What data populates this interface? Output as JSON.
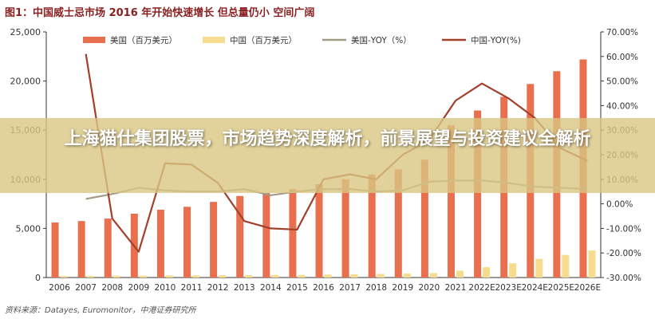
{
  "figure_title": "图1：中国威士忌市场 2016 年开始快速增长 但总量仍小 空间广阔",
  "source_note": "资料来源：Datayes, Euromonitor，中港证券研究所",
  "banner_text": "上海猫仕集团股票，市场趋势深度解析，前景展望与投资建议全解析",
  "colors": {
    "us_value": "#e8704f",
    "cn_value": "#f5dc8e",
    "us_yoy": "#a49a86",
    "cn_yoy": "#a2402b",
    "axis": "#333333",
    "title": "#8a1f1f"
  },
  "chart_data": {
    "type": "bar",
    "categories": [
      "2006",
      "2007",
      "2008",
      "2009",
      "2010",
      "2011",
      "2012",
      "2013",
      "2014",
      "2015",
      "2016",
      "2017",
      "2018",
      "2019",
      "2020",
      "2021",
      "2022E",
      "2023E",
      "2024E",
      "2025E",
      "2026E"
    ],
    "ylim_left": [
      0,
      25000
    ],
    "yticks_left": [
      "0",
      "5,000",
      "10,000",
      "15,000",
      "20,000",
      "25,000"
    ],
    "ylim_right": [
      -30,
      70
    ],
    "yticks_right": [
      "-30.00%",
      "-20.00%",
      "-10.00%",
      "0.00%",
      "10.00%",
      "20.00%",
      "30.00%",
      "40.00%",
      "50.00%",
      "60.00%",
      "70.00%"
    ],
    "legend_position": "top",
    "series": [
      {
        "name": "美国（百万美元）",
        "type": "bar",
        "axis": "left",
        "values": [
          5600,
          5750,
          6000,
          6500,
          6900,
          7200,
          7700,
          8300,
          8600,
          9000,
          9500,
          10000,
          10500,
          11000,
          12000,
          15500,
          17000,
          18400,
          19700,
          21000,
          22200
        ]
      },
      {
        "name": "中国（百万美元）",
        "type": "bar",
        "axis": "left",
        "values": [
          150,
          170,
          190,
          200,
          210,
          220,
          240,
          250,
          260,
          270,
          300,
          330,
          370,
          400,
          450,
          700,
          1050,
          1450,
          1900,
          2300,
          2750
        ]
      },
      {
        "name": "美国-YOY（%）",
        "type": "line",
        "axis": "right",
        "values": [
          null,
          2.0,
          4.0,
          6.5,
          5.5,
          5.0,
          5.0,
          6.0,
          3.5,
          5.0,
          6.0,
          6.0,
          5.0,
          5.5,
          9.0,
          9.5,
          9.5,
          8.5,
          7.0,
          6.5,
          6.0
        ]
      },
      {
        "name": "中国-YOY(%)",
        "type": "line",
        "axis": "right",
        "values": [
          null,
          61.0,
          -6.0,
          -19.5,
          16.5,
          16.0,
          8.5,
          -7.0,
          -10.0,
          -10.5,
          10.0,
          12.0,
          10.0,
          20.0,
          26.0,
          42.0,
          49.0,
          43.0,
          35.0,
          22.5,
          17.5
        ]
      }
    ]
  }
}
